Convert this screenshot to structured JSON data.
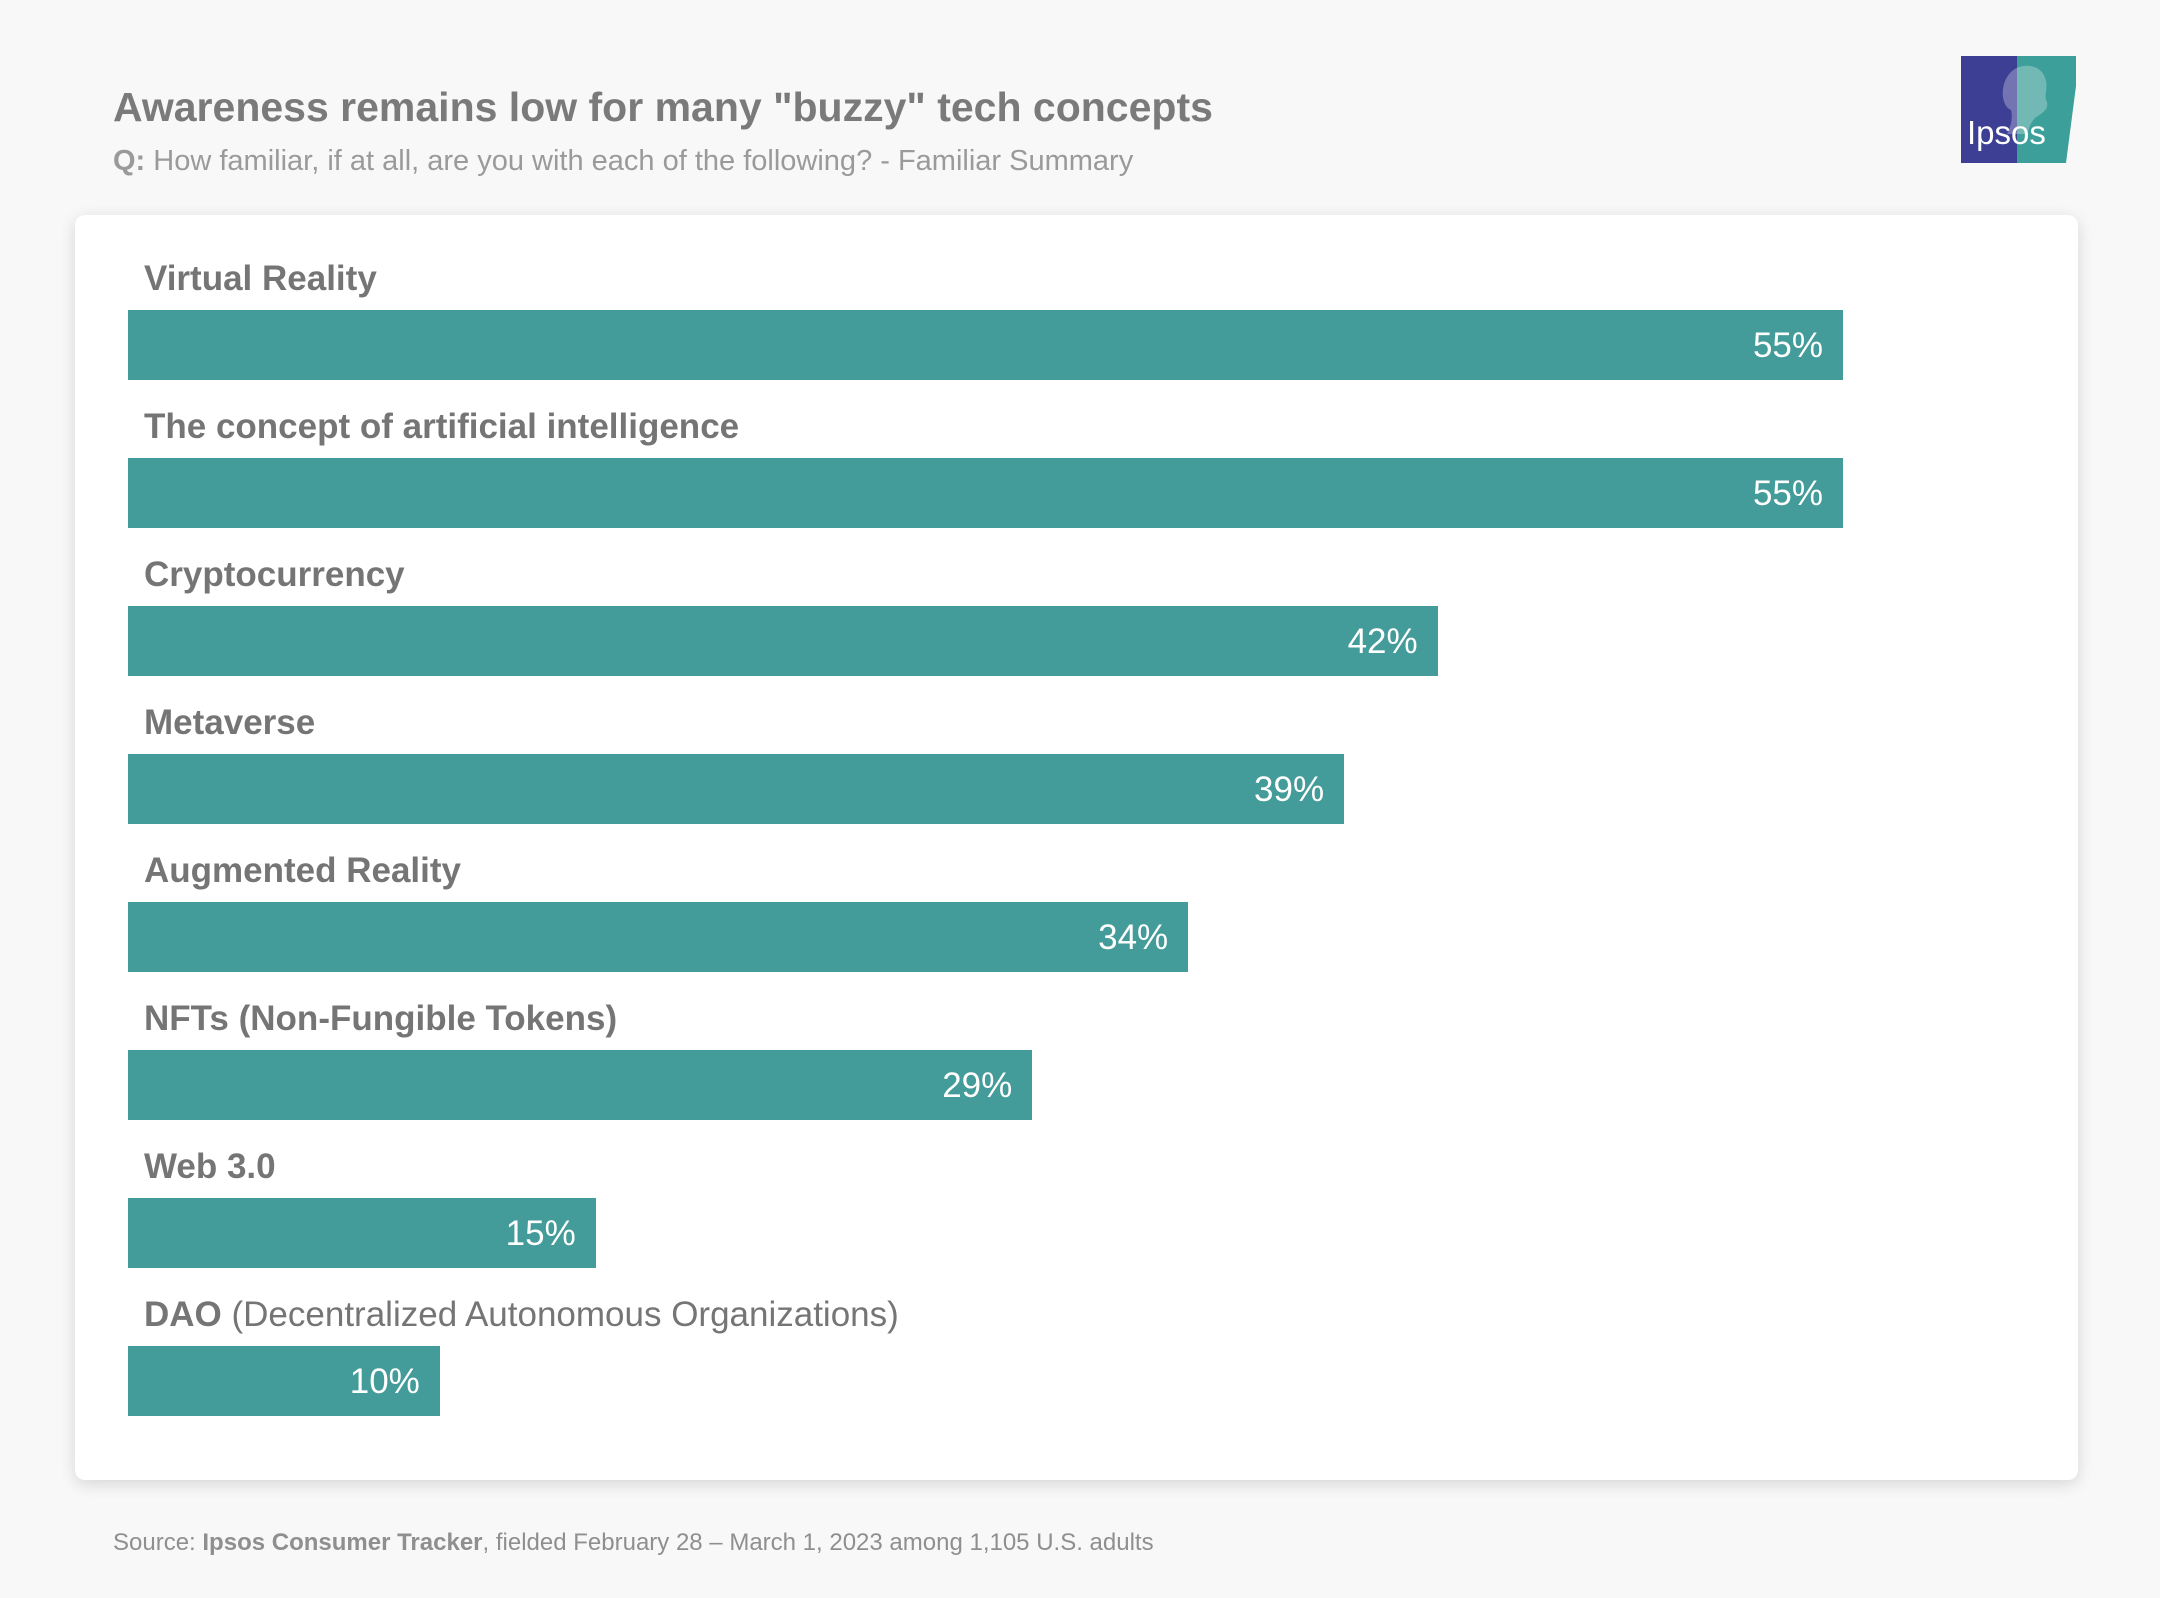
{
  "title": "Awareness remains low for many \"buzzy\" tech concepts",
  "subtitle": {
    "prefix": "Q:",
    "text": "How familiar, if at all, are you with each of the following? - Familiar Summary"
  },
  "logo": {
    "text": "Ipsos",
    "colors": {
      "blue": "#3d3f94",
      "teal": "#3c9f9a"
    }
  },
  "colors": {
    "bar": "#439b9a",
    "label": "#757575",
    "title": "#7a7a7a",
    "card": "#ffffff",
    "background": "#f8f8f8"
  },
  "chart_data": {
    "type": "bar",
    "orientation": "horizontal",
    "title": "Awareness remains low for many \"buzzy\" tech concepts",
    "categories": [
      "Virtual Reality",
      "The concept of artificial intelligence",
      "Cryptocurrency",
      "Metaverse",
      "Augmented Reality",
      "NFTs (Non-Fungible Tokens)",
      "Web 3.0",
      "DAO (Decentralized Autonomous Organizations)"
    ],
    "values": [
      55,
      55,
      42,
      39,
      34,
      29,
      15,
      10
    ],
    "value_labels": [
      "55%",
      "55%",
      "42%",
      "39%",
      "34%",
      "29%",
      "15%",
      "10%"
    ],
    "unit": "%",
    "grid": false,
    "legend": "none",
    "rows": [
      {
        "bold": "Virtual Reality",
        "rest": "",
        "value": 55,
        "value_label": "55%"
      },
      {
        "bold": "The concept of artificial intelligence",
        "rest": "",
        "value": 55,
        "value_label": "55%"
      },
      {
        "bold": "Cryptocurrency",
        "rest": "",
        "value": 42,
        "value_label": "42%"
      },
      {
        "bold": "Metaverse",
        "rest": "",
        "value": 39,
        "value_label": "39%"
      },
      {
        "bold": "Augmented Reality",
        "rest": "",
        "value": 34,
        "value_label": "34%"
      },
      {
        "bold": "NFTs (Non-Fungible Tokens)",
        "rest": "",
        "value": 29,
        "value_label": "29%"
      },
      {
        "bold": "Web 3.0",
        "rest": "",
        "value": 15,
        "value_label": "15%"
      },
      {
        "bold": "DAO",
        "rest": " (Decentralized Autonomous Organizations)",
        "value": 10,
        "value_label": "10%"
      }
    ]
  },
  "source": {
    "prefix": "Source: ",
    "name": "Ipsos Consumer Tracker",
    "rest": ", fielded February 28 – March 1, 2023 among 1,105 U.S. adults"
  }
}
